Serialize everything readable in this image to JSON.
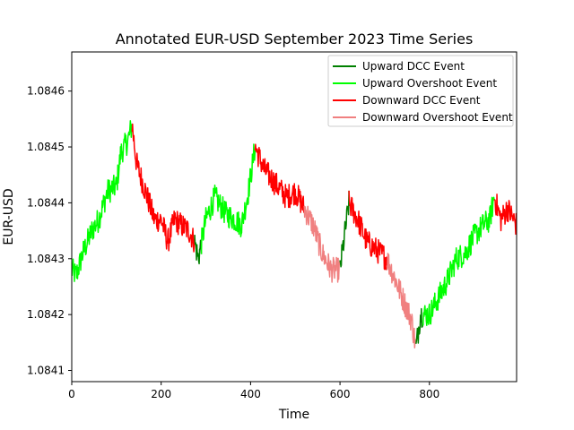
{
  "chart_data": {
    "type": "line",
    "title": "Annotated EUR-USD September 2023 Time Series",
    "xlabel": "Time",
    "ylabel": "EUR-USD",
    "xlim": [
      0,
      995
    ],
    "ylim": [
      1.08408,
      1.08467
    ],
    "xticks": [
      0,
      200,
      400,
      600,
      800
    ],
    "yticks": [
      1.0841,
      1.0842,
      1.0843,
      1.0844,
      1.0845,
      1.0846
    ],
    "legend_position": "top-right",
    "legend": [
      {
        "label": "Upward DCC Event",
        "color": "#008000"
      },
      {
        "label": "Upward Overshoot Event",
        "color": "#00ff00"
      },
      {
        "label": "Downward DCC Event",
        "color": "#ff0000"
      },
      {
        "label": "Downward Overshoot Event",
        "color": "#f08080"
      }
    ],
    "anchors": [
      [
        0,
        1.08428
      ],
      [
        10,
        1.08427
      ],
      [
        25,
        1.08431
      ],
      [
        45,
        1.08435
      ],
      [
        60,
        1.08437
      ],
      [
        80,
        1.08442
      ],
      [
        100,
        1.08443
      ],
      [
        110,
        1.08449
      ],
      [
        125,
        1.08451
      ],
      [
        135,
        1.08454
      ],
      [
        145,
        1.08447
      ],
      [
        165,
        1.08442
      ],
      [
        185,
        1.08437
      ],
      [
        200,
        1.08437
      ],
      [
        215,
        1.08433
      ],
      [
        230,
        1.08437
      ],
      [
        245,
        1.08436
      ],
      [
        262,
        1.08435
      ],
      [
        275,
        1.08433
      ],
      [
        283,
        1.0843
      ],
      [
        300,
        1.08437
      ],
      [
        320,
        1.08441
      ],
      [
        345,
        1.08438
      ],
      [
        365,
        1.08437
      ],
      [
        380,
        1.08436
      ],
      [
        395,
        1.08442
      ],
      [
        410,
        1.0845
      ],
      [
        430,
        1.08446
      ],
      [
        460,
        1.08443
      ],
      [
        480,
        1.08441
      ],
      [
        500,
        1.08442
      ],
      [
        520,
        1.08439
      ],
      [
        540,
        1.08436
      ],
      [
        560,
        1.08431
      ],
      [
        580,
        1.08428
      ],
      [
        600,
        1.08428
      ],
      [
        610,
        1.08434
      ],
      [
        620,
        1.0844
      ],
      [
        640,
        1.08437
      ],
      [
        660,
        1.08433
      ],
      [
        690,
        1.08431
      ],
      [
        705,
        1.0843
      ],
      [
        720,
        1.08427
      ],
      [
        740,
        1.08423
      ],
      [
        760,
        1.08419
      ],
      [
        770,
        1.08414
      ],
      [
        780,
        1.0842
      ],
      [
        800,
        1.0842
      ],
      [
        820,
        1.08423
      ],
      [
        840,
        1.08426
      ],
      [
        860,
        1.0843
      ],
      [
        880,
        1.08431
      ],
      [
        900,
        1.08434
      ],
      [
        920,
        1.08436
      ],
      [
        935,
        1.08437
      ],
      [
        945,
        1.08441
      ],
      [
        960,
        1.08437
      ],
      [
        975,
        1.08439
      ],
      [
        995,
        1.08436
      ]
    ],
    "segments": [
      {
        "event": "Upward Overshoot Event",
        "from": 0,
        "to": 135
      },
      {
        "event": "Downward DCC Event",
        "from": 135,
        "to": 145
      },
      {
        "event": "Downward DCC Event",
        "from": 145,
        "to": 275
      },
      {
        "event": "Upward DCC Event",
        "from": 275,
        "to": 290
      },
      {
        "event": "Upward Overshoot Event",
        "from": 290,
        "to": 410
      },
      {
        "event": "Downward DCC Event",
        "from": 410,
        "to": 520
      },
      {
        "event": "Downward Overshoot Event",
        "from": 520,
        "to": 600
      },
      {
        "event": "Upward DCC Event",
        "from": 600,
        "to": 620
      },
      {
        "event": "Downward DCC Event",
        "from": 620,
        "to": 705
      },
      {
        "event": "Downward Overshoot Event",
        "from": 705,
        "to": 770
      },
      {
        "event": "Upward DCC Event",
        "from": 770,
        "to": 785
      },
      {
        "event": "Upward Overshoot Event",
        "from": 785,
        "to": 945
      },
      {
        "event": "Downward DCC Event",
        "from": 945,
        "to": 995
      }
    ]
  }
}
